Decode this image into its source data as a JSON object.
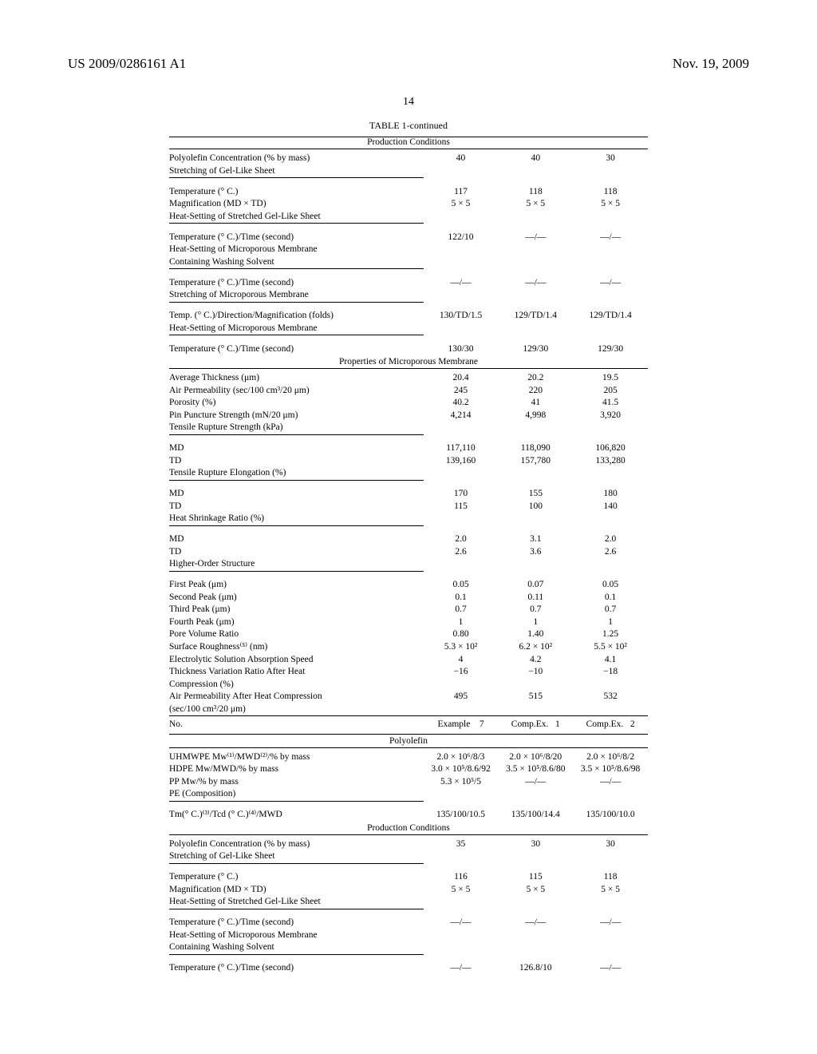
{
  "header": {
    "left": "US 2009/0286161 A1",
    "right": "Nov. 19, 2009",
    "page": "14"
  },
  "table": {
    "title": "TABLE 1-continued",
    "sections": [
      {
        "header": "Production Conditions",
        "groups": [
          {
            "rows": [
              {
                "label": "Polyolefin Concentration (% by mass)",
                "v": [
                  "40",
                  "40",
                  "30"
                ]
              },
              {
                "label": "Stretching of Gel-Like Sheet",
                "underline": true,
                "v": [
                  "",
                  "",
                  ""
                ]
              }
            ]
          },
          {
            "spacer": true
          },
          {
            "rows": [
              {
                "label": "Temperature (° C.)",
                "v": [
                  "117",
                  "118",
                  "118"
                ]
              },
              {
                "label": "Magnification (MD × TD)",
                "v": [
                  "5 × 5",
                  "5 × 5",
                  "5 × 5"
                ]
              },
              {
                "label": "Heat-Setting of Stretched Gel-Like Sheet",
                "underline": true,
                "v": [
                  "",
                  "",
                  ""
                ]
              }
            ]
          },
          {
            "spacer": true
          },
          {
            "rows": [
              {
                "label": "Temperature (° C.)/Time (second)",
                "v": [
                  "122/10",
                  "—/—",
                  "—/—"
                ]
              },
              {
                "label": "Heat-Setting of Microporous Membrane",
                "v": [
                  "",
                  "",
                  ""
                ]
              },
              {
                "label": "Containing Washing Solvent",
                "underline": true,
                "v": [
                  "",
                  "",
                  ""
                ]
              }
            ]
          },
          {
            "spacer": true
          },
          {
            "rows": [
              {
                "label": "Temperature (° C.)/Time (second)",
                "v": [
                  "—/—",
                  "—/—",
                  "—/—"
                ]
              },
              {
                "label": "Stretching of Microporous Membrane",
                "underline": true,
                "v": [
                  "",
                  "",
                  ""
                ]
              }
            ]
          },
          {
            "spacer": true
          },
          {
            "rows": [
              {
                "label": "Temp. (° C.)/Direction/Magnification (folds)",
                "v": [
                  "130/TD/1.5",
                  "129/TD/1.4",
                  "129/TD/1.4"
                ]
              },
              {
                "label": "Heat-Setting of Microporous Membrane",
                "underline": true,
                "v": [
                  "",
                  "",
                  ""
                ]
              }
            ]
          },
          {
            "spacer": true
          },
          {
            "rows": [
              {
                "label": "Temperature (° C.)/Time (second)",
                "v": [
                  "130/30",
                  "129/30",
                  "129/30"
                ]
              }
            ]
          }
        ]
      },
      {
        "header": "Properties of Microporous Membrane",
        "groups": [
          {
            "rows": [
              {
                "label": "Average Thickness (μm)",
                "v": [
                  "20.4",
                  "20.2",
                  "19.5"
                ]
              },
              {
                "label": "Air Permeability (sec/100 cm³/20 μm)",
                "v": [
                  "245",
                  "220",
                  "205"
                ]
              },
              {
                "label": "Porosity (%)",
                "v": [
                  "40.2",
                  "41",
                  "41.5"
                ]
              },
              {
                "label": "Pin Puncture Strength (mN/20 μm)",
                "v": [
                  "4,214",
                  "4,998",
                  "3,920"
                ]
              },
              {
                "label": "Tensile Rupture Strength (kPa)",
                "underline": true,
                "v": [
                  "",
                  "",
                  ""
                ]
              }
            ]
          },
          {
            "spacer": true
          },
          {
            "rows": [
              {
                "label": "MD",
                "v": [
                  "117,110",
                  "118,090",
                  "106,820"
                ]
              },
              {
                "label": "TD",
                "v": [
                  "139,160",
                  "157,780",
                  "133,280"
                ]
              },
              {
                "label": "Tensile Rupture Elongation (%)",
                "underline": true,
                "v": [
                  "",
                  "",
                  ""
                ]
              }
            ]
          },
          {
            "spacer": true
          },
          {
            "rows": [
              {
                "label": "MD",
                "v": [
                  "170",
                  "155",
                  "180"
                ]
              },
              {
                "label": "TD",
                "v": [
                  "115",
                  "100",
                  "140"
                ]
              },
              {
                "label": "Heat Shrinkage Ratio (%)",
                "underline": true,
                "v": [
                  "",
                  "",
                  ""
                ]
              }
            ]
          },
          {
            "spacer": true
          },
          {
            "rows": [
              {
                "label": "MD",
                "v": [
                  "2.0",
                  "3.1",
                  "2.0"
                ]
              },
              {
                "label": "TD",
                "v": [
                  "2.6",
                  "3.6",
                  "2.6"
                ]
              },
              {
                "label": "Higher-Order Structure",
                "underline": true,
                "v": [
                  "",
                  "",
                  ""
                ]
              }
            ]
          },
          {
            "spacer": true
          },
          {
            "rows": [
              {
                "label": "First Peak (μm)",
                "v": [
                  "0.05",
                  "0.07",
                  "0.05"
                ]
              },
              {
                "label": "Second Peak (μm)",
                "v": [
                  "0.1",
                  "0.11",
                  "0.1"
                ]
              },
              {
                "label": "Third Peak (μm)",
                "v": [
                  "0.7",
                  "0.7",
                  "0.7"
                ]
              },
              {
                "label": "Fourth Peak (μm)",
                "v": [
                  "1",
                  "1",
                  "1"
                ]
              },
              {
                "label": "Pore Volume Ratio",
                "v": [
                  "0.80",
                  "1.40",
                  "1.25"
                ]
              },
              {
                "label": "Surface Roughness⁽⁵⁾ (nm)",
                "v": [
                  "5.3 × 10²",
                  "6.2 × 10²",
                  "5.5 × 10²"
                ]
              },
              {
                "label": "Electrolytic Solution Absorption Speed",
                "v": [
                  "4",
                  "4.2",
                  "4.1"
                ]
              },
              {
                "label": "Thickness Variation Ratio After Heat",
                "v": [
                  "−16",
                  "−10",
                  "−18"
                ]
              },
              {
                "label": "Compression (%)",
                "v": [
                  "",
                  "",
                  ""
                ]
              },
              {
                "label": "Air Permeability After Heat Compression",
                "v": [
                  "495",
                  "515",
                  "532"
                ]
              },
              {
                "label": "(sec/100 cm³/20 μm)",
                "v": [
                  "",
                  "",
                  ""
                ]
              }
            ]
          }
        ]
      }
    ],
    "no_row": {
      "label": "No.",
      "v": [
        "Example    7",
        "Comp.Ex.   1",
        "Comp.Ex.   2"
      ]
    },
    "sections2": [
      {
        "header": "Polyolefin",
        "groups": [
          {
            "rows": [
              {
                "label": "UHMWPE Mw⁽¹⁾/MWD⁽²⁾/% by mass",
                "v": [
                  "2.0 × 10⁶/8/3",
                  "2.0 × 10⁶/8/20",
                  "2.0 × 10⁶/8/2"
                ]
              },
              {
                "label": "HDPE Mw/MWD/% by mass",
                "v": [
                  "3.0 × 10⁵/8.6/92",
                  "3.5 × 10⁵/8.6/80",
                  "3.5 × 10⁵/8.6/98"
                ]
              },
              {
                "label": "PP Mw/% by mass",
                "v": [
                  "5.3 × 10⁵/5",
                  "—/—",
                  "—/—"
                ]
              },
              {
                "label": "PE (Composition)",
                "underline": true,
                "v": [
                  "",
                  "",
                  ""
                ]
              }
            ]
          },
          {
            "spacer": true
          },
          {
            "rows": [
              {
                "label": "Tm(° C.)⁽³⁾/Tcd (° C.)⁽⁴⁾/MWD",
                "v": [
                  "135/100/10.5",
                  "135/100/14.4",
                  "135/100/10.0"
                ]
              }
            ]
          }
        ]
      },
      {
        "header": "Production Conditions",
        "groups": [
          {
            "rows": [
              {
                "label": "Polyolefin Concentration (% by mass)",
                "v": [
                  "35",
                  "30",
                  "30"
                ]
              },
              {
                "label": "Stretching of Gel-Like Sheet",
                "underline": true,
                "v": [
                  "",
                  "",
                  ""
                ]
              }
            ]
          },
          {
            "spacer": true
          },
          {
            "rows": [
              {
                "label": "Temperature (° C.)",
                "v": [
                  "116",
                  "115",
                  "118"
                ]
              },
              {
                "label": "Magnification (MD × TD)",
                "v": [
                  "5 × 5",
                  "5 × 5",
                  "5 × 5"
                ]
              },
              {
                "label": "Heat-Setting of Stretched Gel-Like Sheet",
                "underline": true,
                "v": [
                  "",
                  "",
                  ""
                ]
              }
            ]
          },
          {
            "spacer": true
          },
          {
            "rows": [
              {
                "label": "Temperature (° C.)/Time (second)",
                "v": [
                  "—/—",
                  "—/—",
                  "—/—"
                ]
              },
              {
                "label": "Heat-Setting of Microporous Membrane",
                "v": [
                  "",
                  "",
                  ""
                ]
              },
              {
                "label": "Containing Washing Solvent",
                "underline": true,
                "v": [
                  "",
                  "",
                  ""
                ]
              }
            ]
          },
          {
            "spacer": true
          },
          {
            "rows": [
              {
                "label": "Temperature (° C.)/Time (second)",
                "v": [
                  "—/—",
                  "126.8/10",
                  "—/—"
                ]
              }
            ]
          }
        ]
      }
    ]
  }
}
